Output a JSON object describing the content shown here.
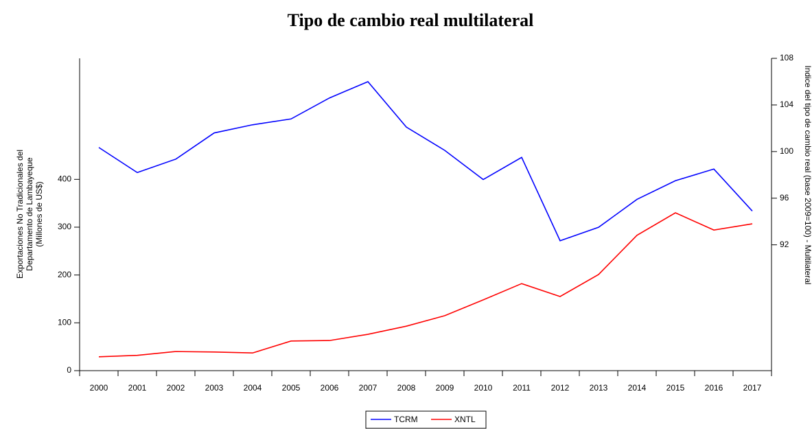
{
  "chart_data": {
    "type": "line",
    "title": "Tipo de cambio real multilateral",
    "y_label": [
      "Exportaciones No Tradicionales del",
      "Departamento de Lambayeque",
      "(Millones de US$)"
    ],
    "y2_label": "Indice del tipo de cambio real (base 2009=100) - Multilateral",
    "categories": [
      "2000",
      "2001",
      "2002",
      "2003",
      "2004",
      "2005",
      "2006",
      "2007",
      "2008",
      "2009",
      "2010",
      "2011",
      "2012",
      "2013",
      "2014",
      "2015",
      "2016",
      "2017"
    ],
    "series": [
      {
        "name": "TCRM",
        "color": "#0000ff",
        "axis": "y2",
        "values": [
          100.35,
          98.2,
          99.35,
          101.6,
          102.3,
          102.8,
          104.6,
          106.0,
          102.1,
          100.1,
          97.6,
          99.5,
          92.35,
          93.5,
          95.9,
          97.5,
          98.5,
          94.9
        ]
      },
      {
        "name": "XNTL",
        "color": "#ff0000",
        "values": [
          29,
          32,
          40,
          39,
          37,
          62,
          63,
          76,
          93,
          115,
          148,
          182,
          155,
          201,
          283,
          330,
          294,
          307
        ]
      }
    ],
    "ylim": [
      0,
      653
    ],
    "yticks": [
      0,
      100,
      200,
      300,
      400
    ],
    "y2lim": [
      81.2,
      108
    ],
    "y2ticks": [
      92,
      96,
      100,
      104,
      108
    ],
    "legend": "bottom"
  }
}
